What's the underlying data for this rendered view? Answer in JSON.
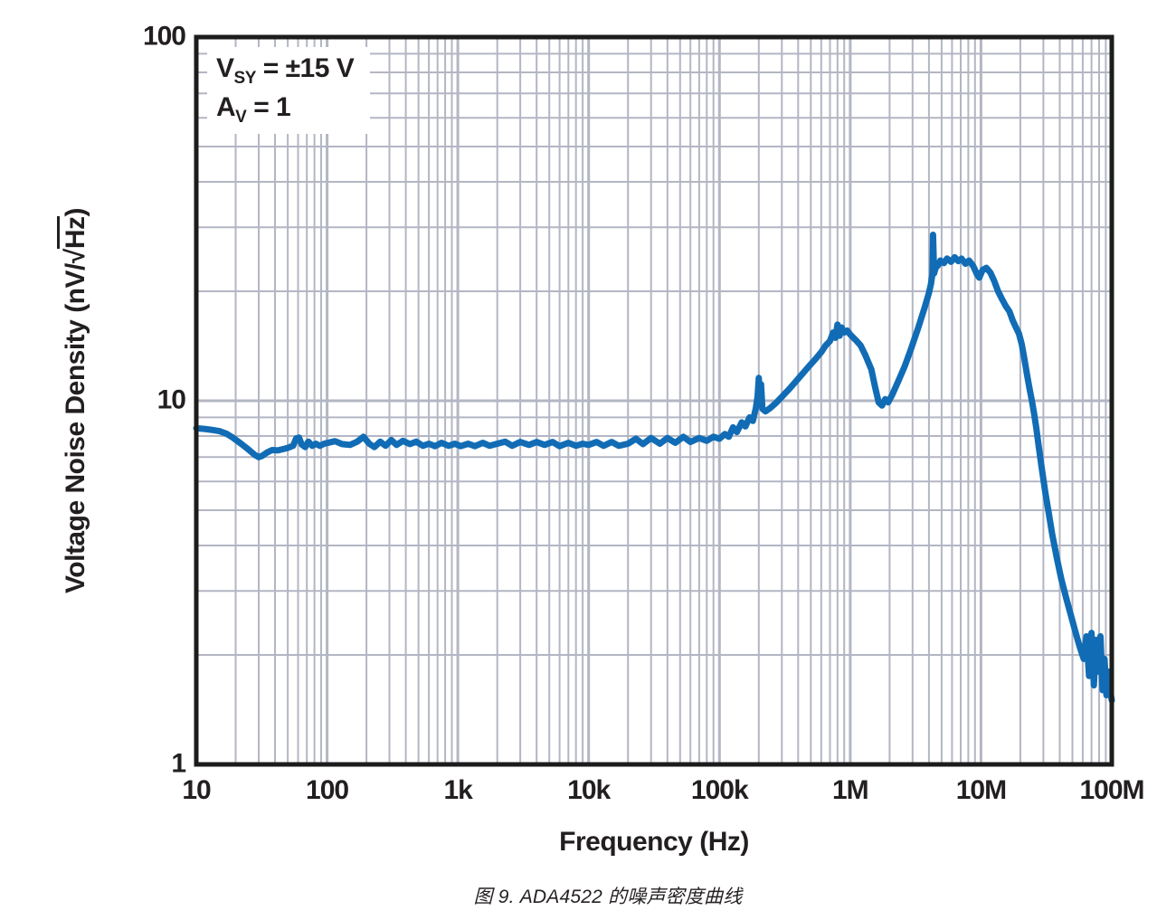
{
  "figure": {
    "caption": "图 9. ADA4522 的噪声密度曲线"
  },
  "annotation": {
    "line1": {
      "main": "V",
      "sub": "SY",
      "rest": " = ±15 V"
    },
    "line2": {
      "main": "A",
      "sub": "V",
      "rest": " = 1"
    }
  },
  "colors": {
    "curve": "#116cb5",
    "grid_minor": "#b3b6c3",
    "grid_major": "#b3b6c3",
    "frame": "#1c1c1c",
    "text": "#231f20",
    "background": "#ffffff"
  },
  "chart_data": {
    "type": "line",
    "title": "",
    "grid": true,
    "legend": "none",
    "x_axis": {
      "title": "Frequency (Hz)",
      "scale": "log",
      "range": [
        10,
        100000000
      ],
      "tick_labels": [
        "10",
        "100",
        "1k",
        "10k",
        "100k",
        "1M",
        "10M",
        "100M"
      ]
    },
    "y_axis": {
      "title": "Voltage Noise Density (nV/√Hz)",
      "title_parts": {
        "prefix": "Voltage Noise Density (nV/",
        "sqrt": "√",
        "radicand": "Hz",
        "suffix": ")"
      },
      "scale": "log",
      "range": [
        1,
        100
      ],
      "tick_labels": [
        "1",
        "10",
        "100"
      ]
    },
    "annotations": [
      "VSY = ±15 V",
      "AV = 1"
    ],
    "series": [
      {
        "name": "ADA4522 voltage noise density",
        "color": "#116cb5",
        "points": [
          [
            10,
            8.4
          ],
          [
            11.5,
            8.37
          ],
          [
            13,
            8.32
          ],
          [
            15,
            8.25
          ],
          [
            17,
            8.12
          ],
          [
            19,
            7.92
          ],
          [
            22,
            7.62
          ],
          [
            25,
            7.35
          ],
          [
            28,
            7.1
          ],
          [
            30,
            7.0
          ],
          [
            32,
            7.06
          ],
          [
            35,
            7.22
          ],
          [
            38,
            7.32
          ],
          [
            42,
            7.3
          ],
          [
            46,
            7.36
          ],
          [
            50,
            7.42
          ],
          [
            55,
            7.52
          ],
          [
            58,
            7.88
          ],
          [
            61,
            7.92
          ],
          [
            64,
            7.58
          ],
          [
            68,
            7.46
          ],
          [
            72,
            7.72
          ],
          [
            77,
            7.52
          ],
          [
            82,
            7.62
          ],
          [
            88,
            7.52
          ],
          [
            95,
            7.62
          ],
          [
            105,
            7.68
          ],
          [
            115,
            7.74
          ],
          [
            130,
            7.6
          ],
          [
            150,
            7.56
          ],
          [
            170,
            7.72
          ],
          [
            190,
            7.96
          ],
          [
            210,
            7.62
          ],
          [
            230,
            7.46
          ],
          [
            255,
            7.72
          ],
          [
            280,
            7.52
          ],
          [
            310,
            7.8
          ],
          [
            340,
            7.56
          ],
          [
            380,
            7.76
          ],
          [
            430,
            7.6
          ],
          [
            480,
            7.72
          ],
          [
            540,
            7.52
          ],
          [
            600,
            7.62
          ],
          [
            670,
            7.5
          ],
          [
            750,
            7.66
          ],
          [
            850,
            7.52
          ],
          [
            950,
            7.62
          ],
          [
            1050,
            7.5
          ],
          [
            1200,
            7.62
          ],
          [
            1350,
            7.5
          ],
          [
            1550,
            7.66
          ],
          [
            1750,
            7.52
          ],
          [
            2000,
            7.62
          ],
          [
            2300,
            7.72
          ],
          [
            2600,
            7.52
          ],
          [
            3000,
            7.7
          ],
          [
            3500,
            7.56
          ],
          [
            4000,
            7.7
          ],
          [
            4600,
            7.56
          ],
          [
            5300,
            7.7
          ],
          [
            6000,
            7.5
          ],
          [
            7000,
            7.66
          ],
          [
            8000,
            7.52
          ],
          [
            9000,
            7.62
          ],
          [
            10000,
            7.56
          ],
          [
            11500,
            7.7
          ],
          [
            13000,
            7.52
          ],
          [
            15000,
            7.7
          ],
          [
            17000,
            7.52
          ],
          [
            20000,
            7.62
          ],
          [
            23000,
            7.86
          ],
          [
            26000,
            7.6
          ],
          [
            30000,
            7.9
          ],
          [
            35000,
            7.62
          ],
          [
            40000,
            7.9
          ],
          [
            46000,
            7.66
          ],
          [
            53000,
            7.96
          ],
          [
            60000,
            7.7
          ],
          [
            70000,
            7.9
          ],
          [
            80000,
            7.76
          ],
          [
            90000,
            7.96
          ],
          [
            100000,
            7.86
          ],
          [
            110000,
            8.1
          ],
          [
            118000,
            7.96
          ],
          [
            127000,
            8.45
          ],
          [
            136000,
            8.2
          ],
          [
            148000,
            8.72
          ],
          [
            158000,
            8.5
          ],
          [
            170000,
            9.0
          ],
          [
            180000,
            8.8
          ],
          [
            190000,
            9.55
          ],
          [
            196000,
            10.3
          ],
          [
            200000,
            11.55
          ],
          [
            204000,
            9.9
          ],
          [
            208000,
            11.1
          ],
          [
            213000,
            9.5
          ],
          [
            225000,
            9.35
          ],
          [
            245000,
            9.55
          ],
          [
            270000,
            9.85
          ],
          [
            300000,
            10.25
          ],
          [
            340000,
            10.75
          ],
          [
            380000,
            11.25
          ],
          [
            430000,
            11.85
          ],
          [
            480000,
            12.4
          ],
          [
            540000,
            13.0
          ],
          [
            600000,
            13.6
          ],
          [
            650000,
            14.2
          ],
          [
            700000,
            14.6
          ],
          [
            740000,
            15.4
          ],
          [
            770000,
            14.9
          ],
          [
            800000,
            16.2
          ],
          [
            830000,
            15.1
          ],
          [
            860000,
            15.9
          ],
          [
            900000,
            15.4
          ],
          [
            950000,
            15.6
          ],
          [
            1000000,
            15.2
          ],
          [
            1100000,
            14.7
          ],
          [
            1200000,
            14.2
          ],
          [
            1300000,
            13.4
          ],
          [
            1450000,
            12.2
          ],
          [
            1550000,
            10.9
          ],
          [
            1650000,
            9.9
          ],
          [
            1750000,
            9.7
          ],
          [
            1850000,
            10.1
          ],
          [
            1950000,
            9.9
          ],
          [
            2100000,
            10.4
          ],
          [
            2300000,
            11.2
          ],
          [
            2600000,
            12.4
          ],
          [
            2900000,
            13.8
          ],
          [
            3300000,
            15.8
          ],
          [
            3700000,
            18.0
          ],
          [
            4000000,
            19.8
          ],
          [
            4150000,
            21.0
          ],
          [
            4250000,
            22.3
          ],
          [
            4300000,
            28.6
          ],
          [
            4380000,
            22.4
          ],
          [
            4500000,
            23.2
          ],
          [
            4700000,
            23.6
          ],
          [
            4900000,
            24.3
          ],
          [
            5200000,
            23.9
          ],
          [
            5500000,
            24.6
          ],
          [
            5900000,
            24.1
          ],
          [
            6300000,
            24.8
          ],
          [
            6700000,
            24.2
          ],
          [
            7100000,
            24.6
          ],
          [
            7600000,
            23.8
          ],
          [
            8100000,
            24.3
          ],
          [
            8700000,
            23.5
          ],
          [
            9300000,
            22.3
          ],
          [
            9700000,
            21.8
          ],
          [
            10300000,
            22.9
          ],
          [
            11000000,
            23.2
          ],
          [
            11800000,
            22.5
          ],
          [
            12600000,
            21.4
          ],
          [
            13500000,
            20.0
          ],
          [
            14500000,
            19.0
          ],
          [
            15500000,
            18.2
          ],
          [
            16500000,
            17.6
          ],
          [
            17500000,
            16.6
          ],
          [
            18500000,
            15.9
          ],
          [
            19500000,
            15.3
          ],
          [
            20500000,
            14.3
          ],
          [
            21500000,
            13.0
          ],
          [
            22500000,
            11.8
          ],
          [
            23500000,
            10.8
          ],
          [
            24500000,
            10.0
          ],
          [
            25500000,
            9.2
          ],
          [
            26500000,
            8.4
          ],
          [
            27500000,
            7.6
          ],
          [
            29000000,
            6.6
          ],
          [
            31000000,
            5.6
          ],
          [
            33000000,
            4.9
          ],
          [
            35000000,
            4.3
          ],
          [
            38000000,
            3.7
          ],
          [
            41000000,
            3.25
          ],
          [
            45000000,
            2.85
          ],
          [
            49000000,
            2.55
          ],
          [
            53000000,
            2.3
          ],
          [
            57000000,
            2.1
          ],
          [
            61000000,
            1.95
          ],
          [
            64000000,
            2.25
          ],
          [
            67000000,
            1.75
          ],
          [
            70000000,
            2.3
          ],
          [
            73000000,
            1.65
          ],
          [
            76000000,
            2.2
          ],
          [
            79000000,
            1.8
          ],
          [
            82000000,
            2.25
          ],
          [
            85000000,
            1.6
          ],
          [
            88000000,
            1.95
          ],
          [
            91000000,
            1.55
          ],
          [
            94000000,
            1.8
          ],
          [
            97000000,
            1.6
          ],
          [
            100000000,
            1.5
          ]
        ]
      }
    ]
  }
}
